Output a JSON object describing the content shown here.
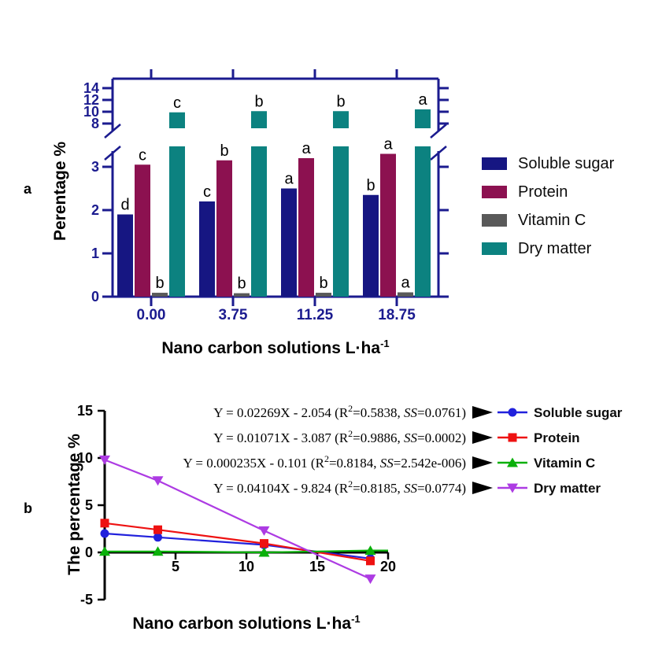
{
  "panel_letters": [
    "a",
    "b"
  ],
  "chart_data": [
    {
      "id": "a",
      "type": "bar",
      "ylabel": "Perentage %",
      "xlabel": "Nano carbon solutions L·ha",
      "xlabel_exponent": "-1",
      "categories": [
        "0.00",
        "3.75",
        "11.25",
        "18.75"
      ],
      "axis_color": "#1b1b8f",
      "legend_position": "right",
      "axis_break": {
        "lower_ticks": [
          0,
          1,
          2,
          3
        ],
        "upper_ticks": [
          8,
          10,
          12,
          14
        ],
        "lower_range": [
          0,
          3.4
        ],
        "upper_range": [
          8,
          15.5
        ]
      },
      "series": [
        {
          "name": "Soluble sugar",
          "color": "#161682",
          "values": [
            1.9,
            2.2,
            2.5,
            2.35
          ],
          "sig_letters": [
            "d",
            "c",
            "a",
            "b"
          ]
        },
        {
          "name": "Protein",
          "color": "#8c1150",
          "values": [
            3.05,
            3.15,
            3.2,
            3.3
          ],
          "sig_letters": [
            "c",
            "b",
            "a",
            "a"
          ]
        },
        {
          "name": "Vitamin C",
          "color": "#595959",
          "values": [
            0.09,
            0.08,
            0.09,
            0.1
          ],
          "sig_letters": [
            "b",
            "b",
            "b",
            "a"
          ]
        },
        {
          "name": "Dry matter",
          "color": "#0c8280",
          "values": [
            9.9,
            10.1,
            10.1,
            10.4
          ],
          "sig_letters": [
            "c",
            "b",
            "b",
            "a"
          ]
        }
      ]
    },
    {
      "id": "b",
      "type": "line",
      "ylabel": "The percentage %",
      "xlabel": "Nano carbon solutions L·ha",
      "xlabel_exponent": "-1",
      "x": [
        0,
        3.75,
        11.25,
        18.75
      ],
      "xlim": [
        0,
        20
      ],
      "ylim": [
        -5,
        15
      ],
      "x_ticks": [
        5,
        10,
        15,
        20
      ],
      "y_ticks": [
        -5,
        0,
        5,
        10,
        15
      ],
      "axis_color": "#000000",
      "legend_position": "right",
      "series": [
        {
          "name": "Soluble sugar",
          "color": "#2121dc",
          "marker": "circle",
          "values": [
            2.0,
            1.6,
            0.8,
            -0.65
          ],
          "regression": {
            "formula": "Y = 0.02269X - 2.054",
            "r2": "0.5838",
            "ss": "0.0761"
          }
        },
        {
          "name": "Protein",
          "color": "#ee1212",
          "marker": "square",
          "values": [
            3.1,
            2.4,
            0.95,
            -0.9
          ],
          "regression": {
            "formula": "Y = 0.01071X - 3.087",
            "r2": "0.9886",
            "ss": "0.0002"
          }
        },
        {
          "name": "Vitamin C",
          "color": "#0ab00a",
          "marker": "triangle-up",
          "values": [
            0.1,
            0.1,
            0.0,
            0.2
          ],
          "regression": {
            "formula": "Y = 0.000235X - 0.101",
            "r2": "0.8184",
            "ss": "2.542e-006"
          }
        },
        {
          "name": "Dry matter",
          "color": "#ad3be3",
          "marker": "triangle-down",
          "values": [
            9.8,
            7.6,
            2.3,
            -2.8
          ],
          "regression": {
            "formula": "Y = 0.04104X - 9.824",
            "r2": "0.8185",
            "ss": "0.0774"
          }
        }
      ]
    }
  ]
}
